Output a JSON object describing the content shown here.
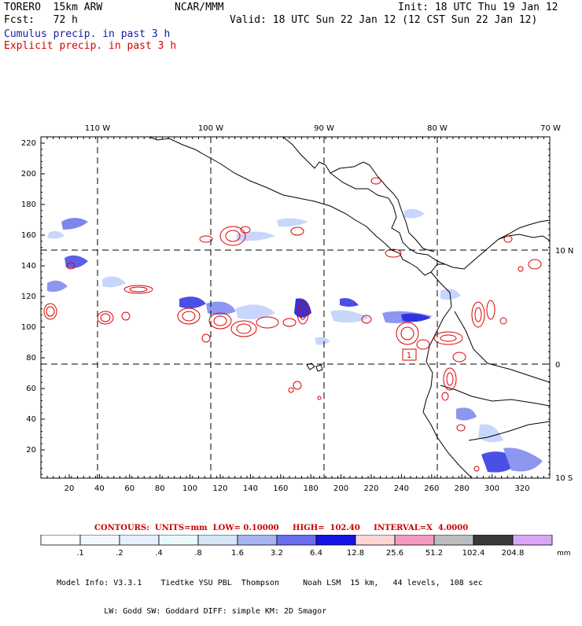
{
  "header": {
    "model_name": "TORERO  15km ARW",
    "org": "NCAR/MMM",
    "init": "Init: 18 UTC Thu 19 Jan 12",
    "fcst": "Fcst:   72 h",
    "valid": "Valid: 18 UTC Sun 22 Jan 12 (12 CST Sun 22 Jan 12)",
    "legend_cumulus": "Cumulus precip. in past 3 h",
    "legend_explicit": "Explicit precip. in past 3 h"
  },
  "axes": {
    "top_longitudes": [
      "110 W",
      "100 W",
      "90 W",
      "80 W",
      "70 W"
    ],
    "right_latitudes": [
      "10 N",
      "0",
      "10 S"
    ],
    "left_ticks": [
      "220",
      "200",
      "180",
      "160",
      "140",
      "120",
      "100",
      "80",
      "60",
      "40",
      "20"
    ],
    "bottom_ticks": [
      "20",
      "40",
      "60",
      "80",
      "100",
      "120",
      "140",
      "160",
      "180",
      "200",
      "220",
      "240",
      "260",
      "280",
      "300",
      "320"
    ]
  },
  "contour_info": "CONTOURS:  UNITS=mm  LOW= 0.10000     HIGH=  102.40     INTERVAL=X  4.0000",
  "colorbar": {
    "labels": [
      ".1",
      ".2",
      ".4",
      ".8",
      "1.6",
      "3.2",
      "6.4",
      "12.8",
      "25.6",
      "51.2",
      "102.4",
      "204.8"
    ],
    "units": "mm",
    "colors": [
      "#ffffff",
      "#f2f7ff",
      "#e4f0ff",
      "#e8fbfb",
      "#d6e6f8",
      "#a7b4f2",
      "#6a6ef0",
      "#1414e6",
      "#ffd6d6",
      "#f59ac0",
      "#bdbdbd",
      "#3a3a3a",
      "#d9a6f5"
    ]
  },
  "high_marker": "1",
  "model_info": [
    "Model Info: V3.3.1    Tiedtke YSU PBL  Thompson     Noah LSM  15 km,   44 levels,  108 sec",
    "          LW: Godd SW: Goddard DIFF: simple KM: 2D Smagor"
  ],
  "colors": {
    "explicit_precip": "#dd0000",
    "cumulus_precip": "#1a1aaa",
    "coast": "#000000"
  }
}
